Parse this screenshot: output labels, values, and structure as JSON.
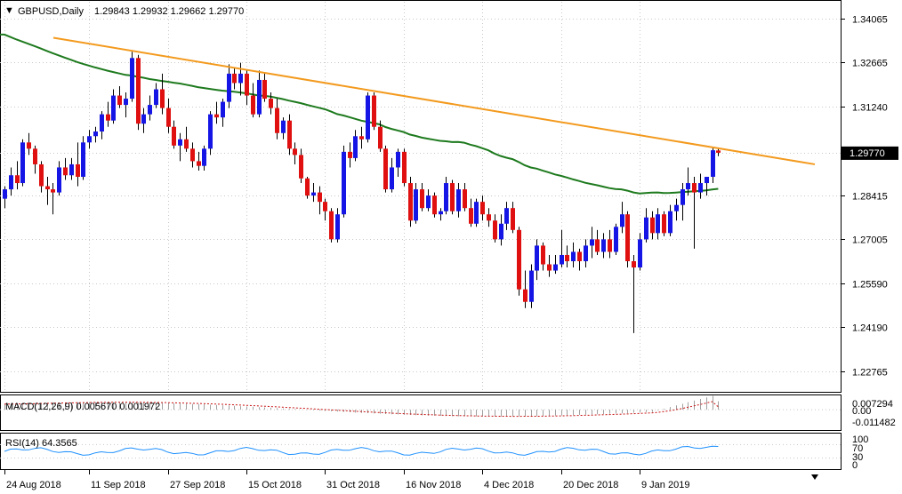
{
  "header": {
    "symbol": "GBPUSD,Daily",
    "ohlc": "1.29843 1.29932 1.29662 1.29770"
  },
  "colors": {
    "bull": "#1515e6",
    "bear": "#e01010",
    "wick": "#000000",
    "ma": "#1e7a1e",
    "trendline": "#f39a1e",
    "macd_signal": "#c81414",
    "rsi": "#1e90ff",
    "grid": "#c8c8c8",
    "axis": "#000000",
    "price_label_bg": "#000000",
    "price_label_fg": "#ffffff"
  },
  "chart_data": [
    {
      "type": "candlestick",
      "panel": "price",
      "y_tick_labels": [
        "1.34065",
        "1.32665",
        "1.31240",
        "1.29770",
        "1.28415",
        "1.27005",
        "1.25590",
        "1.24190",
        "1.22765"
      ],
      "x_tick_labels": [
        "24 Aug 2018",
        "11 Sep 2018",
        "27 Sep 2018",
        "15 Oct 2018",
        "31 Oct 2018",
        "16 Nov 2018",
        "4 Dec 2018",
        "20 Dec 2018",
        "9 Jan 2019"
      ],
      "ylim": [
        1.2215,
        1.346
      ],
      "current_price": 1.2977,
      "current_price_label": "1.29770",
      "candles": [
        {
          "o": 1.283,
          "h": 1.287,
          "l": 1.28,
          "c": 1.286
        },
        {
          "o": 1.286,
          "h": 1.293,
          "l": 1.284,
          "c": 1.2905
        },
        {
          "o": 1.2905,
          "h": 1.295,
          "l": 1.286,
          "c": 1.288
        },
        {
          "o": 1.288,
          "h": 1.302,
          "l": 1.287,
          "c": 1.301
        },
        {
          "o": 1.301,
          "h": 1.304,
          "l": 1.297,
          "c": 1.299
        },
        {
          "o": 1.299,
          "h": 1.3,
          "l": 1.291,
          "c": 1.294
        },
        {
          "o": 1.294,
          "h": 1.295,
          "l": 1.285,
          "c": 1.287
        },
        {
          "o": 1.287,
          "h": 1.29,
          "l": 1.281,
          "c": 1.286
        },
        {
          "o": 1.286,
          "h": 1.288,
          "l": 1.278,
          "c": 1.285
        },
        {
          "o": 1.285,
          "h": 1.295,
          "l": 1.284,
          "c": 1.293
        },
        {
          "o": 1.293,
          "h": 1.296,
          "l": 1.289,
          "c": 1.2905
        },
        {
          "o": 1.2905,
          "h": 1.296,
          "l": 1.289,
          "c": 1.294
        },
        {
          "o": 1.294,
          "h": 1.301,
          "l": 1.287,
          "c": 1.29
        },
        {
          "o": 1.29,
          "h": 1.303,
          "l": 1.289,
          "c": 1.301
        },
        {
          "o": 1.301,
          "h": 1.305,
          "l": 1.299,
          "c": 1.303
        },
        {
          "o": 1.303,
          "h": 1.306,
          "l": 1.301,
          "c": 1.3045
        },
        {
          "o": 1.3045,
          "h": 1.311,
          "l": 1.302,
          "c": 1.31
        },
        {
          "o": 1.31,
          "h": 1.314,
          "l": 1.306,
          "c": 1.308
        },
        {
          "o": 1.308,
          "h": 1.318,
          "l": 1.307,
          "c": 1.316
        },
        {
          "o": 1.316,
          "h": 1.319,
          "l": 1.312,
          "c": 1.313
        },
        {
          "o": 1.313,
          "h": 1.317,
          "l": 1.309,
          "c": 1.315
        },
        {
          "o": 1.315,
          "h": 1.33,
          "l": 1.314,
          "c": 1.328
        },
        {
          "o": 1.328,
          "h": 1.329,
          "l": 1.305,
          "c": 1.307
        },
        {
          "o": 1.307,
          "h": 1.312,
          "l": 1.304,
          "c": 1.31
        },
        {
          "o": 1.31,
          "h": 1.316,
          "l": 1.308,
          "c": 1.313
        },
        {
          "o": 1.313,
          "h": 1.32,
          "l": 1.312,
          "c": 1.318
        },
        {
          "o": 1.318,
          "h": 1.323,
          "l": 1.31,
          "c": 1.312
        },
        {
          "o": 1.312,
          "h": 1.315,
          "l": 1.304,
          "c": 1.306
        },
        {
          "o": 1.306,
          "h": 1.308,
          "l": 1.299,
          "c": 1.3
        },
        {
          "o": 1.3,
          "h": 1.304,
          "l": 1.295,
          "c": 1.302
        },
        {
          "o": 1.302,
          "h": 1.306,
          "l": 1.298,
          "c": 1.299
        },
        {
          "o": 1.299,
          "h": 1.301,
          "l": 1.293,
          "c": 1.295
        },
        {
          "o": 1.295,
          "h": 1.298,
          "l": 1.292,
          "c": 1.2935
        },
        {
          "o": 1.2935,
          "h": 1.3,
          "l": 1.292,
          "c": 1.299
        },
        {
          "o": 1.299,
          "h": 1.311,
          "l": 1.297,
          "c": 1.31
        },
        {
          "o": 1.31,
          "h": 1.314,
          "l": 1.307,
          "c": 1.309
        },
        {
          "o": 1.309,
          "h": 1.315,
          "l": 1.306,
          "c": 1.314
        },
        {
          "o": 1.314,
          "h": 1.326,
          "l": 1.312,
          "c": 1.323
        },
        {
          "o": 1.323,
          "h": 1.325,
          "l": 1.318,
          "c": 1.32
        },
        {
          "o": 1.32,
          "h": 1.3265,
          "l": 1.316,
          "c": 1.323
        },
        {
          "o": 1.323,
          "h": 1.324,
          "l": 1.313,
          "c": 1.316
        },
        {
          "o": 1.316,
          "h": 1.32,
          "l": 1.309,
          "c": 1.31
        },
        {
          "o": 1.31,
          "h": 1.324,
          "l": 1.309,
          "c": 1.321
        },
        {
          "o": 1.321,
          "h": 1.323,
          "l": 1.314,
          "c": 1.315
        },
        {
          "o": 1.315,
          "h": 1.317,
          "l": 1.31,
          "c": 1.312
        },
        {
          "o": 1.312,
          "h": 1.315,
          "l": 1.302,
          "c": 1.304
        },
        {
          "o": 1.304,
          "h": 1.309,
          "l": 1.302,
          "c": 1.308
        },
        {
          "o": 1.308,
          "h": 1.31,
          "l": 1.297,
          "c": 1.299
        },
        {
          "o": 1.299,
          "h": 1.301,
          "l": 1.294,
          "c": 1.297
        },
        {
          "o": 1.297,
          "h": 1.299,
          "l": 1.288,
          "c": 1.2895
        },
        {
          "o": 1.2895,
          "h": 1.29,
          "l": 1.283,
          "c": 1.284
        },
        {
          "o": 1.284,
          "h": 1.288,
          "l": 1.282,
          "c": 1.285
        },
        {
          "o": 1.285,
          "h": 1.287,
          "l": 1.278,
          "c": 1.282
        },
        {
          "o": 1.282,
          "h": 1.283,
          "l": 1.276,
          "c": 1.279
        },
        {
          "o": 1.279,
          "h": 1.28,
          "l": 1.269,
          "c": 1.27
        },
        {
          "o": 1.27,
          "h": 1.28,
          "l": 1.269,
          "c": 1.278
        },
        {
          "o": 1.278,
          "h": 1.3,
          "l": 1.277,
          "c": 1.298
        },
        {
          "o": 1.298,
          "h": 1.301,
          "l": 1.293,
          "c": 1.296
        },
        {
          "o": 1.296,
          "h": 1.305,
          "l": 1.295,
          "c": 1.303
        },
        {
          "o": 1.303,
          "h": 1.306,
          "l": 1.299,
          "c": 1.302
        },
        {
          "o": 1.302,
          "h": 1.317,
          "l": 1.301,
          "c": 1.316
        },
        {
          "o": 1.316,
          "h": 1.317,
          "l": 1.305,
          "c": 1.306
        },
        {
          "o": 1.306,
          "h": 1.308,
          "l": 1.298,
          "c": 1.299
        },
        {
          "o": 1.299,
          "h": 1.3,
          "l": 1.285,
          "c": 1.286
        },
        {
          "o": 1.286,
          "h": 1.296,
          "l": 1.285,
          "c": 1.293
        },
        {
          "o": 1.293,
          "h": 1.299,
          "l": 1.29,
          "c": 1.298
        },
        {
          "o": 1.298,
          "h": 1.299,
          "l": 1.287,
          "c": 1.288
        },
        {
          "o": 1.288,
          "h": 1.29,
          "l": 1.274,
          "c": 1.276
        },
        {
          "o": 1.276,
          "h": 1.288,
          "l": 1.275,
          "c": 1.286
        },
        {
          "o": 1.286,
          "h": 1.288,
          "l": 1.279,
          "c": 1.28
        },
        {
          "o": 1.28,
          "h": 1.286,
          "l": 1.279,
          "c": 1.284
        },
        {
          "o": 1.284,
          "h": 1.285,
          "l": 1.277,
          "c": 1.278
        },
        {
          "o": 1.278,
          "h": 1.28,
          "l": 1.276,
          "c": 1.279
        },
        {
          "o": 1.279,
          "h": 1.29,
          "l": 1.278,
          "c": 1.288
        },
        {
          "o": 1.288,
          "h": 1.289,
          "l": 1.278,
          "c": 1.279
        },
        {
          "o": 1.279,
          "h": 1.288,
          "l": 1.277,
          "c": 1.286
        },
        {
          "o": 1.286,
          "h": 1.288,
          "l": 1.279,
          "c": 1.28
        },
        {
          "o": 1.28,
          "h": 1.283,
          "l": 1.274,
          "c": 1.275
        },
        {
          "o": 1.275,
          "h": 1.283,
          "l": 1.274,
          "c": 1.282
        },
        {
          "o": 1.282,
          "h": 1.284,
          "l": 1.276,
          "c": 1.278
        },
        {
          "o": 1.278,
          "h": 1.28,
          "l": 1.274,
          "c": 1.276
        },
        {
          "o": 1.276,
          "h": 1.278,
          "l": 1.269,
          "c": 1.27
        },
        {
          "o": 1.27,
          "h": 1.278,
          "l": 1.268,
          "c": 1.275
        },
        {
          "o": 1.275,
          "h": 1.282,
          "l": 1.273,
          "c": 1.28
        },
        {
          "o": 1.28,
          "h": 1.282,
          "l": 1.272,
          "c": 1.273
        },
        {
          "o": 1.273,
          "h": 1.274,
          "l": 1.252,
          "c": 1.254
        },
        {
          "o": 1.254,
          "h": 1.26,
          "l": 1.248,
          "c": 1.25
        },
        {
          "o": 1.25,
          "h": 1.262,
          "l": 1.248,
          "c": 1.26
        },
        {
          "o": 1.26,
          "h": 1.27,
          "l": 1.257,
          "c": 1.268
        },
        {
          "o": 1.268,
          "h": 1.269,
          "l": 1.26,
          "c": 1.262
        },
        {
          "o": 1.262,
          "h": 1.265,
          "l": 1.258,
          "c": 1.26
        },
        {
          "o": 1.26,
          "h": 1.265,
          "l": 1.259,
          "c": 1.262
        },
        {
          "o": 1.262,
          "h": 1.273,
          "l": 1.261,
          "c": 1.265
        },
        {
          "o": 1.265,
          "h": 1.268,
          "l": 1.261,
          "c": 1.263
        },
        {
          "o": 1.263,
          "h": 1.269,
          "l": 1.261,
          "c": 1.266
        },
        {
          "o": 1.266,
          "h": 1.267,
          "l": 1.26,
          "c": 1.263
        },
        {
          "o": 1.263,
          "h": 1.27,
          "l": 1.261,
          "c": 1.268
        },
        {
          "o": 1.268,
          "h": 1.274,
          "l": 1.264,
          "c": 1.27
        },
        {
          "o": 1.27,
          "h": 1.273,
          "l": 1.265,
          "c": 1.266
        },
        {
          "o": 1.266,
          "h": 1.272,
          "l": 1.264,
          "c": 1.27
        },
        {
          "o": 1.27,
          "h": 1.273,
          "l": 1.264,
          "c": 1.266
        },
        {
          "o": 1.266,
          "h": 1.275,
          "l": 1.265,
          "c": 1.274
        },
        {
          "o": 1.274,
          "h": 1.282,
          "l": 1.272,
          "c": 1.278
        },
        {
          "o": 1.278,
          "h": 1.279,
          "l": 1.261,
          "c": 1.263
        },
        {
          "o": 1.263,
          "h": 1.265,
          "l": 1.24,
          "c": 1.261
        },
        {
          "o": 1.261,
          "h": 1.272,
          "l": 1.26,
          "c": 1.27
        },
        {
          "o": 1.27,
          "h": 1.28,
          "l": 1.269,
          "c": 1.277
        },
        {
          "o": 1.277,
          "h": 1.279,
          "l": 1.27,
          "c": 1.272
        },
        {
          "o": 1.272,
          "h": 1.28,
          "l": 1.27,
          "c": 1.278
        },
        {
          "o": 1.278,
          "h": 1.279,
          "l": 1.271,
          "c": 1.272
        },
        {
          "o": 1.272,
          "h": 1.281,
          "l": 1.271,
          "c": 1.279
        },
        {
          "o": 1.279,
          "h": 1.283,
          "l": 1.276,
          "c": 1.281
        },
        {
          "o": 1.281,
          "h": 1.288,
          "l": 1.276,
          "c": 1.286
        },
        {
          "o": 1.286,
          "h": 1.293,
          "l": 1.284,
          "c": 1.288
        },
        {
          "o": 1.288,
          "h": 1.29,
          "l": 1.267,
          "c": 1.285
        },
        {
          "o": 1.285,
          "h": 1.291,
          "l": 1.283,
          "c": 1.288
        },
        {
          "o": 1.288,
          "h": 1.29,
          "l": 1.284,
          "c": 1.29
        },
        {
          "o": 1.29,
          "h": 1.2995,
          "l": 1.288,
          "c": 1.2985
        },
        {
          "o": 1.29843,
          "h": 1.29932,
          "l": 1.29662,
          "c": 1.2977
        }
      ],
      "moving_average_start": 1.3355,
      "moving_average_end": 1.2905,
      "trendline": {
        "start": 1.3345,
        "end": 1.294
      }
    },
    {
      "type": "line",
      "panel": "macd",
      "label": "MACD(12,26,9) 0.005670 0.001972",
      "y_tick_labels": [
        "0.007294",
        "0.00",
        "-0.011482"
      ],
      "ylim": [
        -0.013,
        0.009
      ],
      "macd_line": 0.00567,
      "signal_line": 0.001972
    },
    {
      "type": "line",
      "panel": "rsi",
      "label": "RSI(14) 64.3565",
      "y_tick_labels": [
        "100",
        "70",
        "30",
        "0"
      ],
      "ylim": [
        0,
        100
      ],
      "last_value": 64.3565
    }
  ]
}
